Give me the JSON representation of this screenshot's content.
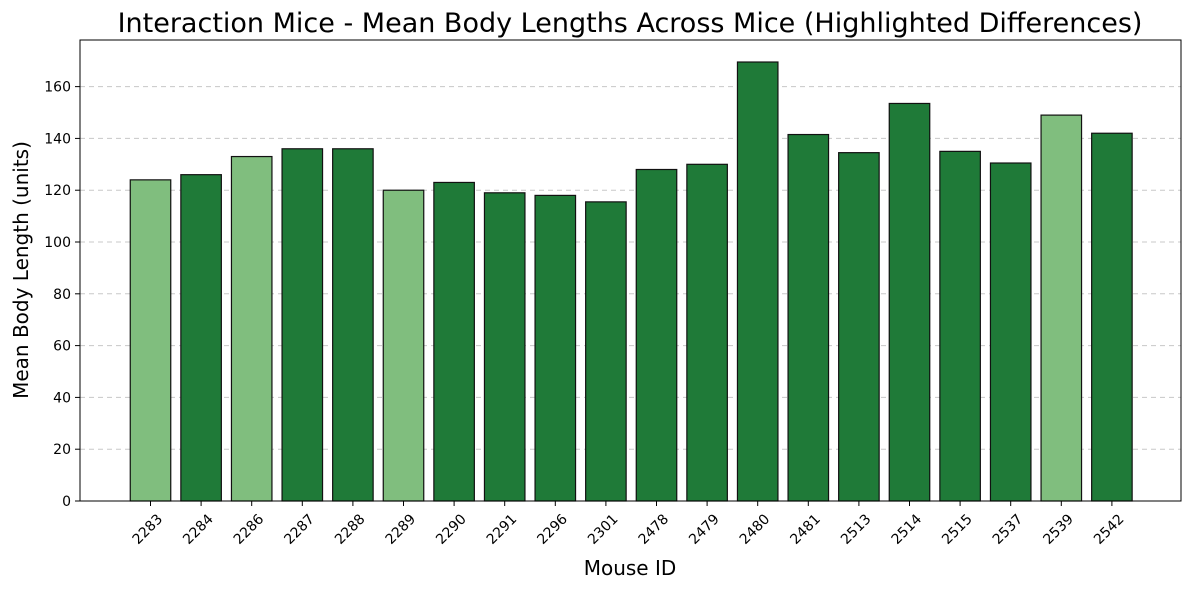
{
  "chart_data": {
    "type": "bar",
    "title": "Interaction Mice - Mean Body Lengths Across Mice (Highlighted Differences)",
    "xlabel": "Mouse ID",
    "ylabel": "Mean Body Length (units)",
    "ylim": [
      0,
      178
    ],
    "yticks": [
      0,
      20,
      40,
      60,
      80,
      100,
      120,
      140,
      160
    ],
    "grid": "y-dashed",
    "categories": [
      "2283",
      "2284",
      "2286",
      "2287",
      "2288",
      "2289",
      "2290",
      "2291",
      "2296",
      "2301",
      "2478",
      "2479",
      "2480",
      "2481",
      "2513",
      "2514",
      "2515",
      "2537",
      "2539",
      "2542"
    ],
    "values": [
      124,
      126,
      133,
      136,
      136,
      120,
      123,
      119,
      118,
      115.5,
      128,
      130,
      169.5,
      141.5,
      134.5,
      153.5,
      135,
      130.5,
      149,
      142
    ],
    "highlighted": [
      true,
      false,
      true,
      false,
      false,
      true,
      false,
      false,
      false,
      false,
      false,
      false,
      false,
      false,
      false,
      false,
      false,
      false,
      true,
      false
    ],
    "colors": {
      "normal": "#1f7a38",
      "highlighted": "#80be7e",
      "edge": "#111111"
    }
  }
}
